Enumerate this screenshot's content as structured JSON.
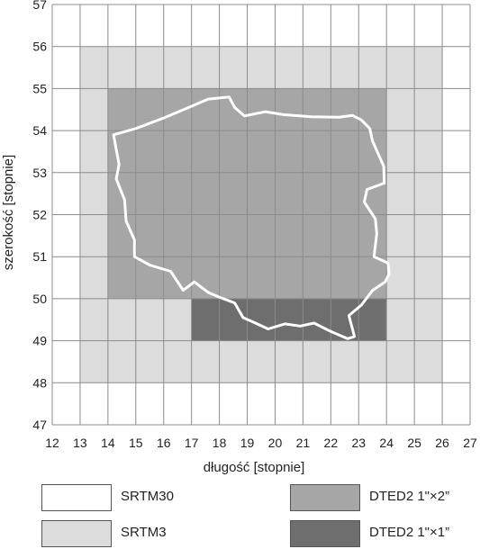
{
  "map": {
    "xlabel": "długość [stopnie]",
    "ylabel": "szerokość [stopnie]",
    "x_ticks": [
      "12",
      "13",
      "14",
      "15",
      "16",
      "17",
      "18",
      "19",
      "20",
      "21",
      "22",
      "23",
      "24",
      "25",
      "26",
      "27"
    ],
    "y_ticks": [
      "47",
      "48",
      "49",
      "50",
      "51",
      "52",
      "53",
      "54",
      "55",
      "56",
      "57"
    ],
    "x_range": [
      12,
      27
    ],
    "y_range": [
      47,
      57
    ],
    "grid_step_deg": 1,
    "coverage": [
      {
        "id": "srtm3",
        "lon": [
          13,
          26
        ],
        "lat": [
          48,
          56
        ],
        "color": "#dcdcdc"
      },
      {
        "id": "dted2_1x2",
        "lon": [
          14,
          24
        ],
        "lat": [
          50,
          55
        ],
        "color": "#a6a6a6"
      },
      {
        "id": "dted2_1x1",
        "lon": [
          17,
          24
        ],
        "lat": [
          49,
          50
        ],
        "color": "#6e6e6e"
      }
    ],
    "background_color": "#ffffff",
    "grid_color": "#8c8c8c",
    "border_color": "#ffffff",
    "border_lonlat": [
      [
        14.2,
        53.9
      ],
      [
        15.0,
        54.05
      ],
      [
        16.0,
        54.3
      ],
      [
        16.9,
        54.55
      ],
      [
        17.6,
        54.75
      ],
      [
        18.35,
        54.8
      ],
      [
        18.55,
        54.55
      ],
      [
        18.9,
        54.35
      ],
      [
        19.65,
        54.45
      ],
      [
        20.3,
        54.38
      ],
      [
        21.3,
        54.33
      ],
      [
        22.3,
        54.32
      ],
      [
        22.78,
        54.36
      ],
      [
        23.1,
        54.25
      ],
      [
        23.4,
        54.05
      ],
      [
        23.5,
        53.75
      ],
      [
        23.9,
        53.15
      ],
      [
        23.92,
        52.75
      ],
      [
        23.3,
        52.6
      ],
      [
        23.2,
        52.3
      ],
      [
        23.6,
        51.9
      ],
      [
        23.65,
        51.55
      ],
      [
        23.55,
        51.0
      ],
      [
        24.05,
        50.85
      ],
      [
        24.1,
        50.6
      ],
      [
        23.95,
        50.4
      ],
      [
        23.5,
        50.2
      ],
      [
        23.1,
        49.85
      ],
      [
        22.65,
        49.6
      ],
      [
        22.85,
        49.1
      ],
      [
        22.6,
        49.05
      ],
      [
        22.0,
        49.22
      ],
      [
        21.4,
        49.42
      ],
      [
        20.9,
        49.35
      ],
      [
        20.35,
        49.4
      ],
      [
        19.75,
        49.28
      ],
      [
        19.2,
        49.45
      ],
      [
        18.85,
        49.55
      ],
      [
        18.55,
        49.9
      ],
      [
        17.95,
        50.05
      ],
      [
        17.6,
        50.15
      ],
      [
        17.1,
        50.4
      ],
      [
        16.7,
        50.2
      ],
      [
        16.25,
        50.65
      ],
      [
        15.5,
        50.8
      ],
      [
        14.95,
        51.0
      ],
      [
        14.95,
        51.4
      ],
      [
        14.65,
        51.85
      ],
      [
        14.6,
        52.35
      ],
      [
        14.3,
        52.85
      ],
      [
        14.4,
        53.2
      ],
      [
        14.3,
        53.55
      ],
      [
        14.2,
        53.9
      ]
    ]
  },
  "legend": [
    {
      "label": "SRTM30",
      "color": "#ffffff"
    },
    {
      "label": "DTED2 1\"×2”",
      "color": "#a6a6a6"
    },
    {
      "label": "SRTM3",
      "color": "#dcdcdc"
    },
    {
      "label": "DTED2 1\"×1”",
      "color": "#6e6e6e"
    }
  ]
}
